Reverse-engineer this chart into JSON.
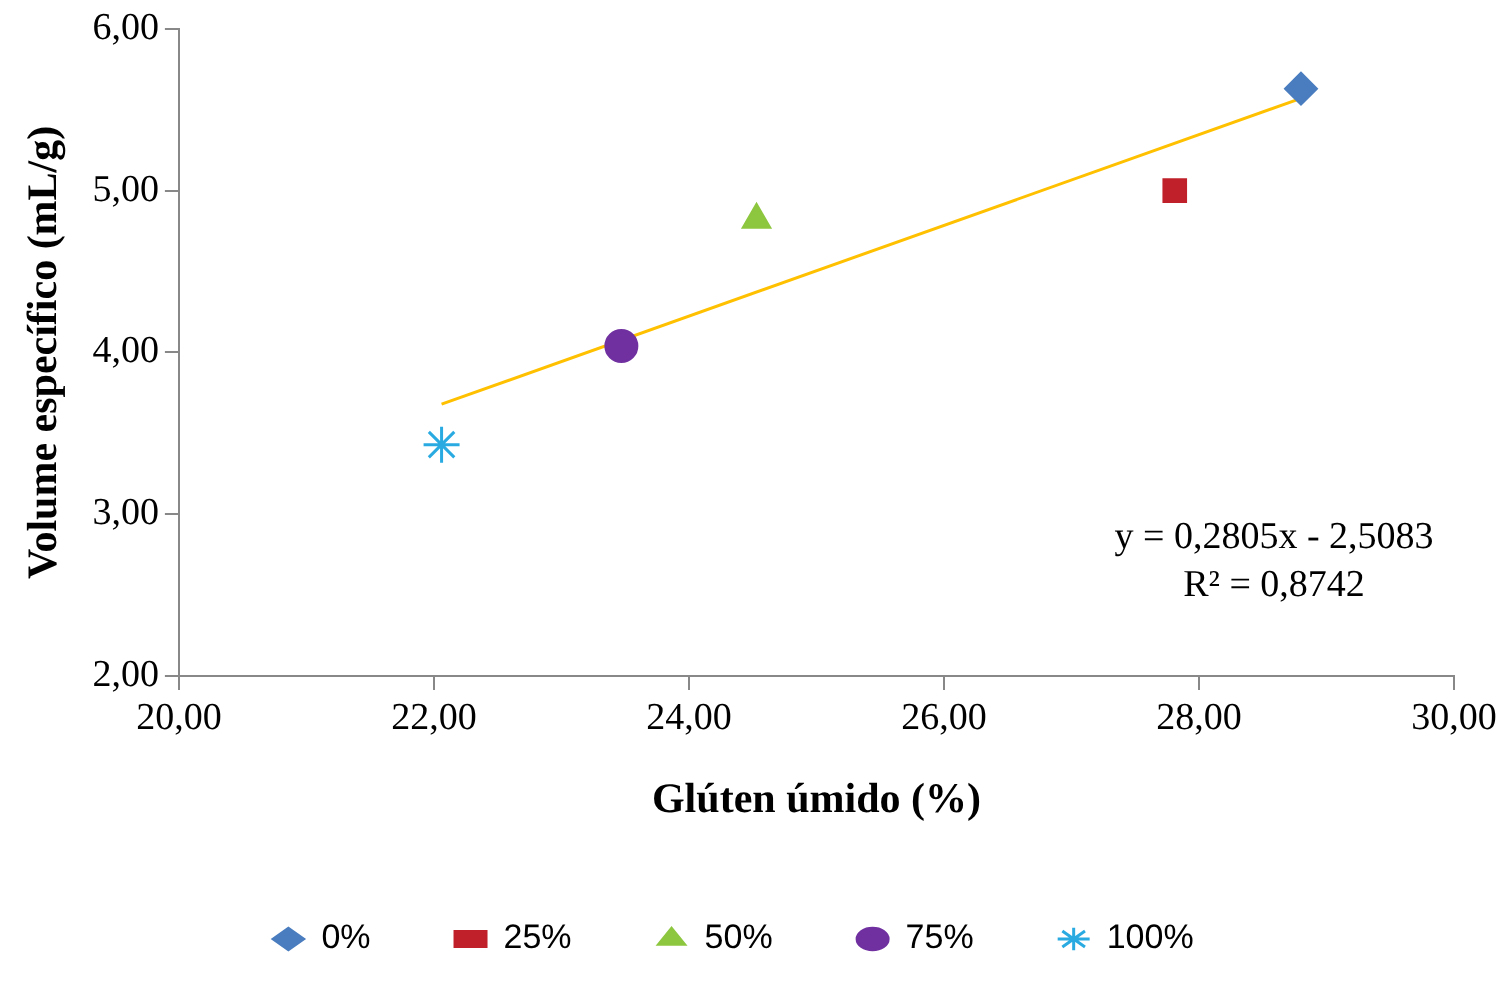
{
  "chart_data": {
    "type": "scatter",
    "xlabel": "Glúten úmido (%)",
    "ylabel": "Volume específico (mL/g)",
    "xlim": [
      20,
      30
    ],
    "xticks": [
      {
        "value": 20,
        "label": "20,00"
      },
      {
        "value": 22,
        "label": "22,00"
      },
      {
        "value": 24,
        "label": "24,00"
      },
      {
        "value": 26,
        "label": "26,00"
      },
      {
        "value": 28,
        "label": "28,00"
      },
      {
        "value": 30,
        "label": "30,00"
      }
    ],
    "ylim": [
      2,
      6
    ],
    "yticks": [
      {
        "value": 2,
        "label": "2,00"
      },
      {
        "value": 3,
        "label": "3,00"
      },
      {
        "value": 4,
        "label": "4,00"
      },
      {
        "value": 5,
        "label": "5,00"
      },
      {
        "value": 6,
        "label": "6,00"
      }
    ],
    "grid": false,
    "legend": "bottom",
    "series": [
      {
        "name": "0%",
        "color": "#4a7dbf",
        "marker": "diamond",
        "x": [
          28.8
        ],
        "values": [
          5.63
        ]
      },
      {
        "name": "25%",
        "color": "#c0202a",
        "marker": "square",
        "x": [
          27.81
        ],
        "values": [
          5.0
        ]
      },
      {
        "name": "50%",
        "color": "#8dc63f",
        "marker": "triangle",
        "x": [
          24.53
        ],
        "values": [
          4.82
        ]
      },
      {
        "name": "75%",
        "color": "#7030a0",
        "marker": "circle",
        "x": [
          23.47
        ],
        "values": [
          4.04
        ]
      },
      {
        "name": "100%",
        "color": "#29abe2",
        "marker": "cross",
        "x": [
          22.06
        ],
        "values": [
          3.43
        ]
      },
      {
        "type": "line",
        "color": "#ffc000",
        "marker": "none",
        "x": [
          22.06,
          28.8
        ],
        "values": [
          3.68,
          5.57
        ]
      }
    ],
    "annotations": [
      "y = 0,2805x - 2,5083",
      "R² = 0,8742"
    ]
  }
}
